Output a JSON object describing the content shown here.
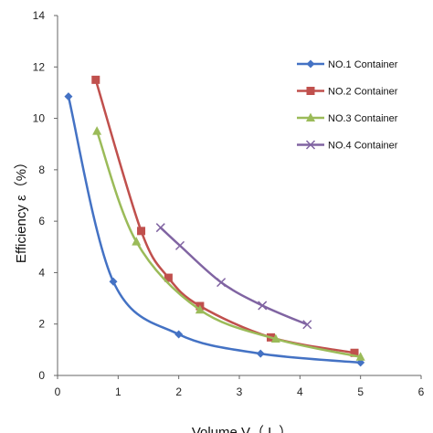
{
  "chart_data": {
    "type": "line",
    "xlabel": "Volume  V（ L ）",
    "ylabel": "Efficiency  ε（%）",
    "xlim": [
      0,
      6
    ],
    "ylim": [
      0,
      14
    ],
    "x_ticks": [
      "0",
      "1",
      "2",
      "3",
      "4",
      "5",
      "6"
    ],
    "y_ticks": [
      "0",
      "2",
      "4",
      "6",
      "8",
      "10",
      "12",
      "14"
    ],
    "grid": false,
    "legend_position": "top-right",
    "series": [
      {
        "name": "NO.1 Container",
        "color": "#4472C4",
        "marker": "diamond",
        "points": [
          [
            0.18,
            10.85
          ],
          [
            0.92,
            3.65
          ],
          [
            2.0,
            1.6
          ],
          [
            3.35,
            0.85
          ],
          [
            5.0,
            0.5
          ]
        ]
      },
      {
        "name": "NO.2 Container",
        "color": "#C0504D",
        "marker": "square",
        "points": [
          [
            0.63,
            11.5
          ],
          [
            1.38,
            5.62
          ],
          [
            1.83,
            3.8
          ],
          [
            2.35,
            2.7
          ],
          [
            3.52,
            1.48
          ],
          [
            4.9,
            0.88
          ]
        ]
      },
      {
        "name": "NO.3 Container",
        "color": "#9BBB59",
        "marker": "triangle",
        "points": [
          [
            0.65,
            9.5
          ],
          [
            1.3,
            5.2
          ],
          [
            2.35,
            2.55
          ],
          [
            3.6,
            1.42
          ],
          [
            5.0,
            0.72
          ]
        ]
      },
      {
        "name": "NO.4 Container",
        "color": "#8064A2",
        "marker": "x",
        "points": [
          [
            1.7,
            5.75
          ],
          [
            2.02,
            5.05
          ],
          [
            2.7,
            3.62
          ],
          [
            3.38,
            2.72
          ],
          [
            4.12,
            1.98
          ]
        ]
      }
    ]
  }
}
